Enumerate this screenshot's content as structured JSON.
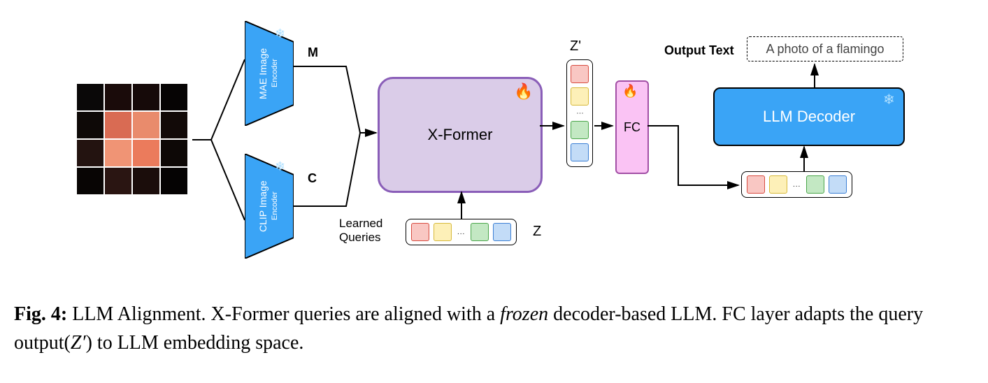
{
  "image_grid": {
    "rows": 4,
    "cols": 4,
    "cell_colors": [
      "#0a0808",
      "#1a0b0a",
      "#160a09",
      "#060404",
      "#0e0907",
      "#d96b53",
      "#e98b6c",
      "#120a08",
      "#231310",
      "#f09475",
      "#eb7b5c",
      "#0d0806",
      "#080504",
      "#2a1512",
      "#1b0d0b",
      "#050303"
    ]
  },
  "encoders": {
    "mae": {
      "title": "MAE Image",
      "sub": "Encoder",
      "out_label": "M",
      "color": "#3aa4f6"
    },
    "clip": {
      "title": "CLIP Image",
      "sub": "Encoder",
      "out_label": "C",
      "color": "#3aa4f6"
    }
  },
  "xformer": {
    "label": "X-Former",
    "border": "#8a5eb8",
    "fill": "#dacce8"
  },
  "queries_label": "Learned\nQueries",
  "z_label": "Z",
  "zprime_label": "Z'",
  "fc": {
    "label": "FC",
    "border": "#a064a3",
    "fill": "#fac3f4"
  },
  "output_text_label": "Output Text",
  "output_text_value": "A photo of a flamingo",
  "llm": {
    "label": "LLM Decoder",
    "fill": "#3aa4f6"
  },
  "tokens": {
    "colors": {
      "red": {
        "fill": "#f9c7c3",
        "border": "#d84b3f"
      },
      "yellow": {
        "fill": "#fdf0b8",
        "border": "#d7b93a"
      },
      "green": {
        "fill": "#c3e8c3",
        "border": "#4aa64a"
      },
      "blue": {
        "fill": "#c3dcf7",
        "border": "#3b7fd4"
      }
    },
    "order": [
      "red",
      "yellow",
      "dots",
      "green",
      "blue"
    ]
  },
  "caption": {
    "fig": "Fig. 4:",
    "body_a": " LLM Alignment. X-Former queries are aligned with a ",
    "italic": "frozen",
    "body_b": " decoder-based LLM. FC layer adapts the query output(",
    "zprime": "Z′",
    "body_c": ") to LLM embedding space."
  },
  "icons": {
    "snow": "❄",
    "fire": "🔥"
  }
}
